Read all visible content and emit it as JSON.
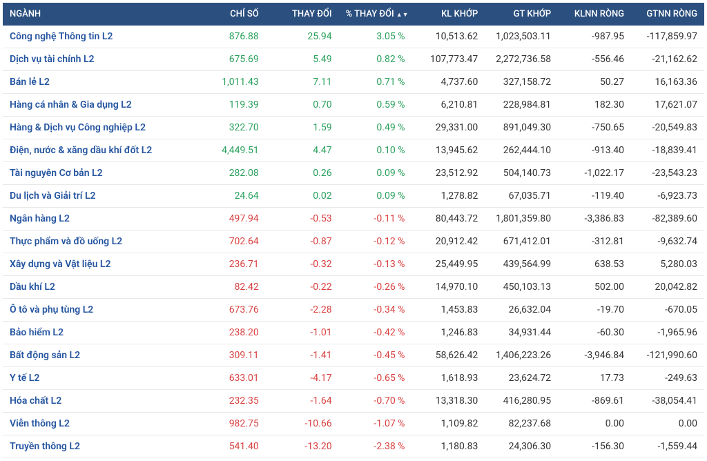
{
  "table": {
    "header_bg": "#2b4f7e",
    "header_text_color": "#ffffff",
    "row_border_color": "#e8e8e8",
    "name_color": "#2555a0",
    "positive_color": "#29a05c",
    "negative_color": "#d94040",
    "neutral_color": "#333333",
    "sort_column": "pct_change",
    "sort_dir": "desc",
    "columns": [
      {
        "key": "name",
        "label": "NGÀNH",
        "align": "left"
      },
      {
        "key": "index",
        "label": "CHỈ SỐ",
        "align": "right"
      },
      {
        "key": "change",
        "label": "THAY ĐỔI",
        "align": "right"
      },
      {
        "key": "pct_change",
        "label": "% THAY ĐỔI",
        "align": "right",
        "sortable": true
      },
      {
        "key": "vol",
        "label": "KL KHỚP",
        "align": "right"
      },
      {
        "key": "val",
        "label": "GT KHỚP",
        "align": "right"
      },
      {
        "key": "fnet_vol",
        "label": "KLNN RÒNG",
        "align": "right"
      },
      {
        "key": "fnet_val",
        "label": "GTNN RÒNG",
        "align": "right"
      }
    ],
    "rows": [
      {
        "name": "Công nghệ Thông tin L2",
        "index": "876.88",
        "change": "25.94",
        "pct_change": "3.05 %",
        "dir": "pos",
        "vol": "10,513.62",
        "val": "1,023,503.11",
        "fnet_vol": "-987.95",
        "fnet_val": "-117,859.97"
      },
      {
        "name": "Dịch vụ tài chính L2",
        "index": "675.69",
        "change": "5.49",
        "pct_change": "0.82 %",
        "dir": "pos",
        "vol": "107,773.47",
        "val": "2,272,736.58",
        "fnet_vol": "-556.46",
        "fnet_val": "-21,162.62"
      },
      {
        "name": "Bán lẻ L2",
        "index": "1,011.43",
        "change": "7.11",
        "pct_change": "0.71 %",
        "dir": "pos",
        "vol": "4,737.60",
        "val": "327,158.72",
        "fnet_vol": "50.27",
        "fnet_val": "16,163.36"
      },
      {
        "name": "Hàng cá nhân & Gia dụng L2",
        "index": "119.39",
        "change": "0.70",
        "pct_change": "0.59 %",
        "dir": "pos",
        "vol": "6,210.81",
        "val": "228,984.81",
        "fnet_vol": "182.30",
        "fnet_val": "17,621.07"
      },
      {
        "name": "Hàng & Dịch vụ Công nghiệp L2",
        "index": "322.70",
        "change": "1.59",
        "pct_change": "0.49 %",
        "dir": "pos",
        "vol": "29,331.00",
        "val": "891,049.30",
        "fnet_vol": "-750.65",
        "fnet_val": "-20,549.83"
      },
      {
        "name": "Điện, nước & xăng dầu khí đốt L2",
        "index": "4,449.51",
        "change": "4.47",
        "pct_change": "0.10 %",
        "dir": "pos",
        "vol": "13,945.62",
        "val": "262,444.10",
        "fnet_vol": "-913.40",
        "fnet_val": "-18,839.41"
      },
      {
        "name": "Tài nguyên Cơ bản L2",
        "index": "282.08",
        "change": "0.26",
        "pct_change": "0.09 %",
        "dir": "pos",
        "vol": "23,512.92",
        "val": "504,140.73",
        "fnet_vol": "-1,022.17",
        "fnet_val": "-23,543.23"
      },
      {
        "name": "Du lịch và Giải trí L2",
        "index": "24.64",
        "change": "0.02",
        "pct_change": "0.09 %",
        "dir": "pos",
        "vol": "1,278.82",
        "val": "67,035.71",
        "fnet_vol": "-119.40",
        "fnet_val": "-6,923.73"
      },
      {
        "name": "Ngân hàng L2",
        "index": "497.94",
        "change": "-0.53",
        "pct_change": "-0.11 %",
        "dir": "neg",
        "vol": "80,443.72",
        "val": "1,801,359.80",
        "fnet_vol": "-3,386.83",
        "fnet_val": "-82,389.60"
      },
      {
        "name": "Thực phẩm và đồ uống L2",
        "index": "702.64",
        "change": "-0.87",
        "pct_change": "-0.12 %",
        "dir": "neg",
        "vol": "20,912.42",
        "val": "671,412.01",
        "fnet_vol": "-312.81",
        "fnet_val": "-9,632.74"
      },
      {
        "name": "Xây dựng và Vật liệu L2",
        "index": "236.71",
        "change": "-0.32",
        "pct_change": "-0.13 %",
        "dir": "neg",
        "vol": "25,449.95",
        "val": "439,564.99",
        "fnet_vol": "638.53",
        "fnet_val": "5,280.03"
      },
      {
        "name": "Dầu khí L2",
        "index": "82.42",
        "change": "-0.22",
        "pct_change": "-0.26 %",
        "dir": "neg",
        "vol": "14,970.10",
        "val": "450,103.13",
        "fnet_vol": "502.00",
        "fnet_val": "20,042.82"
      },
      {
        "name": "Ô tô và phụ tùng L2",
        "index": "673.76",
        "change": "-2.28",
        "pct_change": "-0.34 %",
        "dir": "neg",
        "vol": "1,453.83",
        "val": "26,632.04",
        "fnet_vol": "-19.70",
        "fnet_val": "-670.05"
      },
      {
        "name": "Bảo hiểm L2",
        "index": "238.20",
        "change": "-1.01",
        "pct_change": "-0.42 %",
        "dir": "neg",
        "vol": "1,246.83",
        "val": "34,931.44",
        "fnet_vol": "-60.30",
        "fnet_val": "-1,965.96"
      },
      {
        "name": "Bất động sản L2",
        "index": "309.11",
        "change": "-1.41",
        "pct_change": "-0.45 %",
        "dir": "neg",
        "vol": "58,626.42",
        "val": "1,406,223.26",
        "fnet_vol": "-3,946.84",
        "fnet_val": "-121,990.60"
      },
      {
        "name": "Y tế L2",
        "index": "633.01",
        "change": "-4.17",
        "pct_change": "-0.65 %",
        "dir": "neg",
        "vol": "1,618.93",
        "val": "23,624.72",
        "fnet_vol": "17.73",
        "fnet_val": "-249.63"
      },
      {
        "name": "Hóa chất L2",
        "index": "232.35",
        "change": "-1.64",
        "pct_change": "-0.70 %",
        "dir": "neg",
        "vol": "13,318.30",
        "val": "416,280.95",
        "fnet_vol": "-869.61",
        "fnet_val": "-38,054.41"
      },
      {
        "name": "Viễn thông L2",
        "index": "982.75",
        "change": "-10.66",
        "pct_change": "-1.07 %",
        "dir": "neg",
        "vol": "1,109.82",
        "val": "82,237.68",
        "fnet_vol": "0.00",
        "fnet_val": "0.00"
      },
      {
        "name": "Truyền thông L2",
        "index": "541.40",
        "change": "-13.20",
        "pct_change": "-2.38 %",
        "dir": "neg",
        "vol": "1,180.83",
        "val": "24,306.30",
        "fnet_vol": "-156.30",
        "fnet_val": "-1,559.44"
      }
    ]
  }
}
